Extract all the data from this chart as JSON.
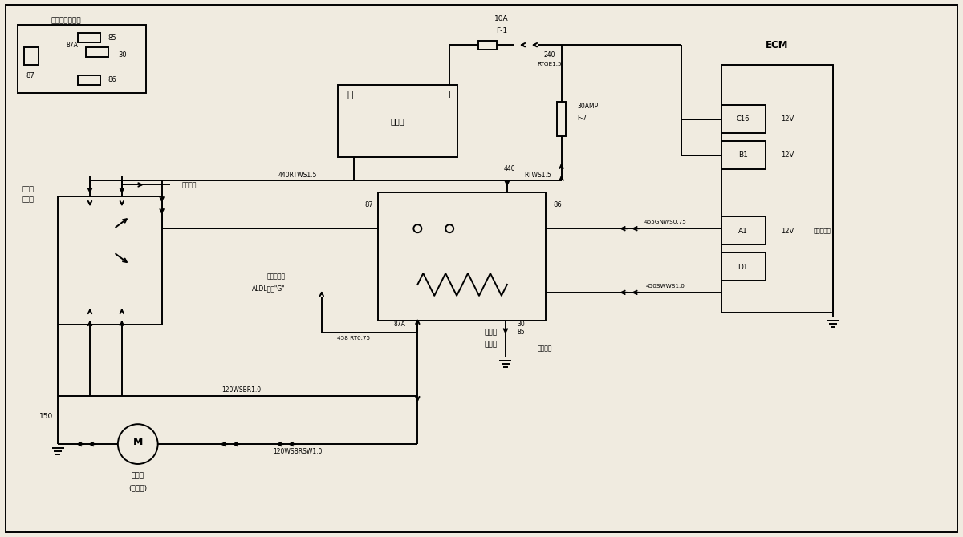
{
  "bg": "#f0ebe0",
  "lc": "#000000",
  "figsize": [
    12.0,
    6.7
  ],
  "dpi": 100,
  "xlim": [
    0,
    120
  ],
  "ylim": [
    0,
    67
  ]
}
